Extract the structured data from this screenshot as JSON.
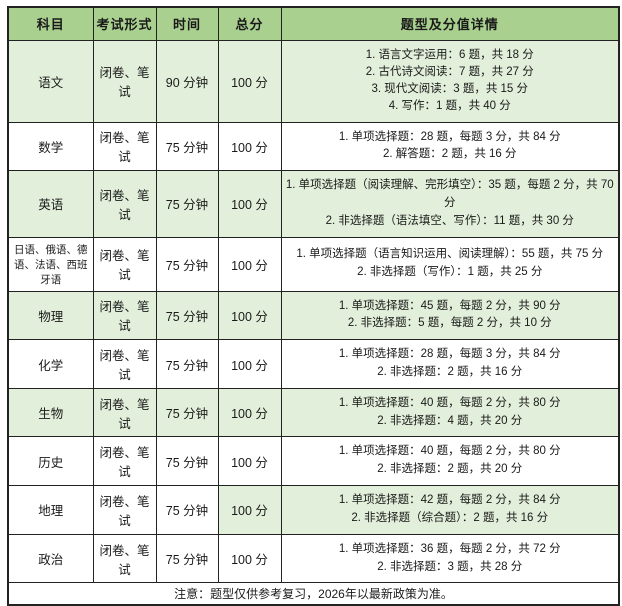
{
  "table": {
    "columns": [
      "科目",
      "考试形式",
      "时间",
      "总分",
      "题型及分值详情"
    ],
    "rows": [
      {
        "subject": "语文",
        "format": "闭卷、笔试",
        "time": "90 分钟",
        "score": "100 分",
        "shading": "full",
        "details": [
          "1. 语言文字运用：6 题，共 18 分",
          "2. 古代诗文阅读：7 题，共 27 分",
          "3. 现代文阅读：3 题，共 15 分",
          "4. 写作：1 题，共 40 分"
        ]
      },
      {
        "subject": "数学",
        "format": "闭卷、笔试",
        "time": "75 分钟",
        "score": "100 分",
        "shading": "none",
        "details": [
          "1. 单项选择题：28 题，每题 3 分，共 84 分",
          "2. 解答题：2 题，共 16 分"
        ]
      },
      {
        "subject": "英语",
        "format": "闭卷、笔试",
        "time": "75 分钟",
        "score": "100 分",
        "shading": "full",
        "details": [
          "1. 单项选择题（阅读理解、完形填空）：35 题，每题 2 分，共 70 分",
          "2. 非选择题（语法填空、写作）：11 题，共 30 分"
        ]
      },
      {
        "subject": "日语、俄语、德语、法语、西班牙语",
        "format": "闭卷、笔试",
        "time": "75 分钟",
        "score": "100 分",
        "shading": "none",
        "details": [
          "1. 单项选择题（语言知识运用、阅读理解）：55 题，共 75 分",
          "2. 非选择题（写作）：1 题，共 25 分"
        ]
      },
      {
        "subject": "物理",
        "format": "闭卷、笔试",
        "time": "75 分钟",
        "score": "100 分",
        "shading": "full",
        "details": [
          "1. 单项选择题：45 题，每题 2 分，共 90 分",
          "2. 非选择题：5 题，每题 2 分，共 10 分"
        ]
      },
      {
        "subject": "化学",
        "format": "闭卷、笔试",
        "time": "75 分钟",
        "score": "100 分",
        "shading": "none",
        "details": [
          "1. 单项选择题：28 题，每题 3 分，共 84 分",
          "2. 非选择题：2 题，共 16 分"
        ]
      },
      {
        "subject": "生物",
        "format": "闭卷、笔试",
        "time": "75 分钟",
        "score": "100 分",
        "shading": "full",
        "details": [
          "1. 单项选择题：40 题，每题 2 分，共 80 分",
          "2. 非选择题：4 题，共 20 分"
        ]
      },
      {
        "subject": "历史",
        "format": "闭卷、笔试",
        "time": "75 分钟",
        "score": "100 分",
        "shading": "none",
        "details": [
          "1. 单项选择题：40 题，每题 2 分，共 80 分",
          "2. 非选择题：2 题，共 20 分"
        ]
      },
      {
        "subject": "地理",
        "format": "闭卷、笔试",
        "time": "75 分钟",
        "score": "100 分",
        "shading": "right2",
        "details": [
          "1. 单项选择题：42 题，每题 2 分，共 84 分",
          "2. 非选择题（综合题）：2 题，共 16 分"
        ]
      },
      {
        "subject": "政治",
        "format": "闭卷、笔试",
        "time": "75 分钟",
        "score": "100 分",
        "shading": "none",
        "details": [
          "1. 单项选择题：36 题，每题 2 分，共 72 分",
          "2. 非选择题：3 题，共 28 分"
        ]
      }
    ],
    "footnote": "注意：题型仅供参考复习，2026年以最新政策为准。"
  },
  "colors": {
    "header_bg": "#a9d08e",
    "row_highlight_bg": "#e2efda",
    "border": "#222222",
    "text": "#1a1a1a"
  }
}
